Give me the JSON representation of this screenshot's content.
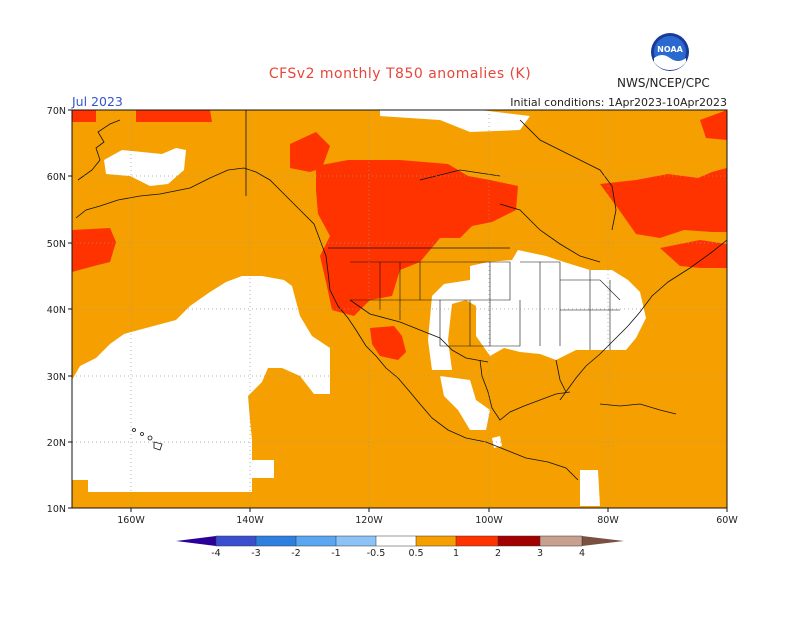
{
  "header": {
    "title": "CFSv2 monthly T850 anomalies (K)",
    "month": "Jul 2023",
    "initial_conditions": "Initial conditions: 1Apr2023-10Apr2023",
    "agency": "NWS/NCEP/CPC",
    "logo_text": "NOAA"
  },
  "map": {
    "lat_ticks": [
      "70N",
      "60N",
      "50N",
      "40N",
      "30N",
      "20N",
      "10N"
    ],
    "lon_ticks": [
      "160W",
      "140W",
      "120W",
      "100W",
      "80W",
      "60W"
    ],
    "lat_range": [
      10,
      70
    ],
    "lon_range": [
      -170,
      -60
    ]
  },
  "legend": {
    "labels": [
      "-4",
      "-3",
      "-2",
      "-1",
      "-0.5",
      "0.5",
      "1",
      "2",
      "3",
      "4"
    ],
    "colors": [
      "#2a0099",
      "#3a4fd0",
      "#2f7fe0",
      "#5aa6f2",
      "#8cc2f5",
      "#ffffff",
      "#f5a000",
      "#ff3300",
      "#a30000",
      "#c8a090",
      "#7a5040"
    ]
  },
  "colors": {
    "anom_0_5_to_1": "#f5a000",
    "anom_1_to_2": "#ff3300",
    "neutral": "#ffffff",
    "title": "#e8463a",
    "month": "#3355cc"
  }
}
